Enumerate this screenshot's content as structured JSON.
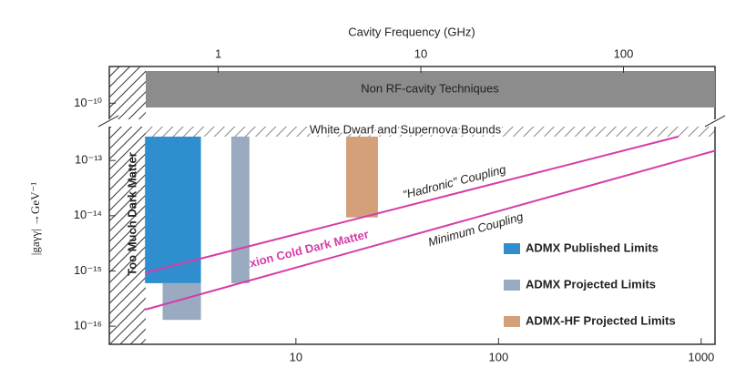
{
  "chart_data": {
    "type": "limits",
    "title": "Cavity Frequency (GHz)",
    "y_label": "|gaγγ| →GeV⁻¹",
    "xscale": "log",
    "yscale": "log",
    "xlim": [
      1.2,
      1170
    ],
    "xticks": [
      10,
      100,
      1000
    ],
    "x2lim": [
      0.29,
      283
    ],
    "x2ticks": [
      1,
      10,
      100
    ],
    "ylim": [
      4.7e-17,
      2.7e-13
    ],
    "yticks": [
      {
        "value": 1e-13,
        "label": "10⁻¹³"
      },
      {
        "value": 1e-14,
        "label": "10⁻¹⁴"
      },
      {
        "value": 1e-15,
        "label": "10⁻¹⁵"
      },
      {
        "value": 1e-16,
        "label": "10⁻¹⁶"
      }
    ],
    "upper_panel": {
      "ylim": [
        2e-11,
        2e-09
      ],
      "yticks": [
        {
          "value": 1e-10,
          "label": "10⁻¹⁰"
        }
      ]
    },
    "annotations": [
      "Non RF-cavity Techniques",
      "White Dwarf and Supernova Bounds",
      "Too Much Dark Matter",
      "Axion Cold Dark Matter"
    ],
    "series": [
      {
        "name": "ADMX Published Limits",
        "color": "#2f8fce",
        "regions": [
          {
            "x": [
              1.8,
              3.4
            ],
            "y": [
              6e-16,
              2.7e-13
            ]
          }
        ]
      },
      {
        "name": "ADMX Projected Limits",
        "color": "#9aaac0",
        "regions": [
          {
            "x": [
              2.2,
              3.4
            ],
            "y": [
              1.3e-16,
              6e-16
            ]
          },
          {
            "x": [
              4.8,
              5.9
            ],
            "y": [
              6e-16,
              2.7e-13
            ]
          }
        ]
      },
      {
        "name": "ADMX-HF Projected Limits",
        "color": "#d4a07a",
        "regions": [
          {
            "x": [
              17.7,
              25.4
            ],
            "y": [
              9.3e-15,
              2.7e-13
            ]
          }
        ]
      }
    ],
    "lines": [
      {
        "name": "\"Hadronic\" Coupling",
        "color": "#d63ca8",
        "x": [
          1.81,
          771
        ],
        "values": [
          9.3e-16,
          2.7e-13
        ]
      },
      {
        "name": "Minimum Coupling",
        "color": "#d63ca8",
        "x": [
          1.81,
          1170
        ],
        "values": [
          2e-16,
          1.5e-13
        ]
      }
    ],
    "legend": "lower right"
  }
}
